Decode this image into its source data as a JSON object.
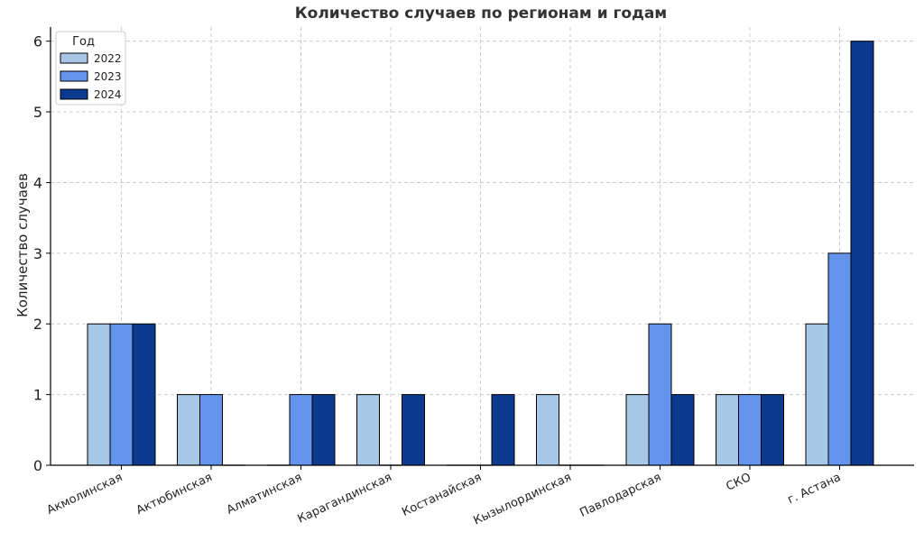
{
  "chart_data": {
    "type": "bar",
    "title": "Количество случаев по регионам и годам",
    "xlabel": "",
    "ylabel": "Количество случаев",
    "categories": [
      "Акмолинская",
      "Актюбинская",
      "Алматинская",
      "Карагандинская",
      "Костанайская",
      "Кызылординская",
      "Павлодарская",
      "СКО",
      "г. Астана"
    ],
    "series": [
      {
        "name": "2022",
        "color": "#a7c7e7",
        "values": [
          2,
          1,
          0,
          1,
          0,
          1,
          1,
          1,
          2
        ]
      },
      {
        "name": "2023",
        "color": "#6495ed",
        "values": [
          2,
          1,
          1,
          0,
          0,
          0,
          2,
          1,
          3
        ]
      },
      {
        "name": "2024",
        "color": "#0b3a8e",
        "values": [
          2,
          0,
          1,
          1,
          1,
          0,
          1,
          1,
          6
        ]
      }
    ],
    "ylim": [
      0,
      6.2
    ],
    "yticks": [
      0,
      1,
      2,
      3,
      4,
      5,
      6
    ],
    "grid": true,
    "legend": {
      "title": "Год",
      "placement": "top-left"
    }
  }
}
